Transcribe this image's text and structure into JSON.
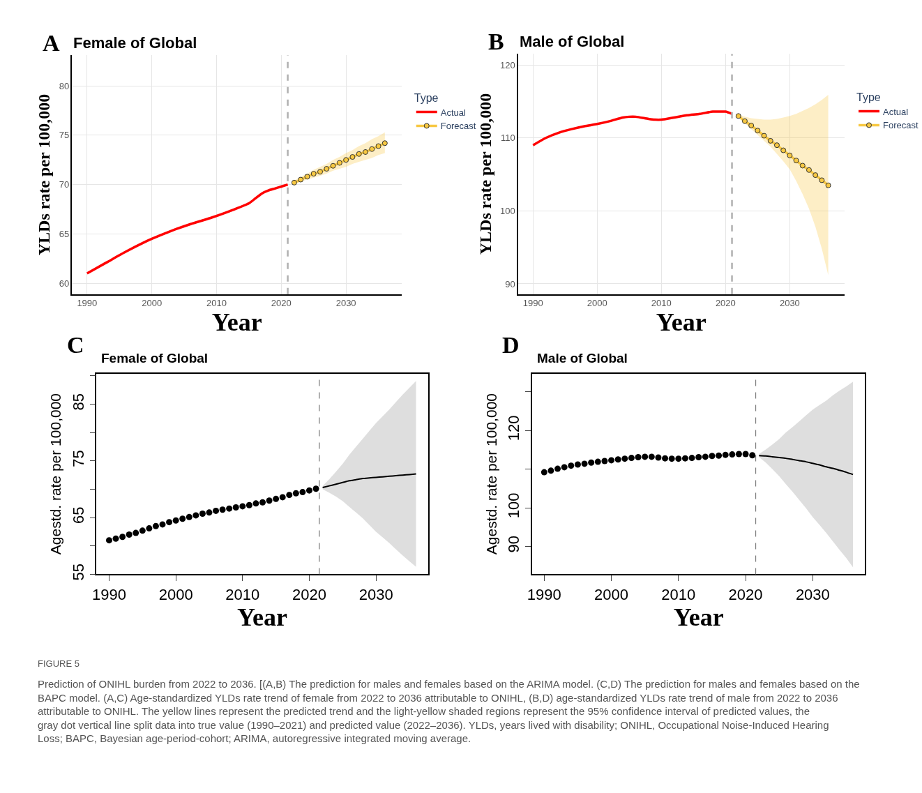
{
  "chart_data": [
    {
      "type": "line",
      "title": "Female of Global",
      "xlabel": "Year",
      "ylabel": "YLDs rate per 100,000",
      "legend_title": "Type",
      "legend": "right",
      "grid": true,
      "annotations": [
        "A"
      ],
      "xlim": [
        1987.7,
        2038.6
      ],
      "xticks": [
        1990,
        2000,
        2010,
        2020,
        2030
      ],
      "ylim": [
        58.9,
        83.1
      ],
      "yticks": [
        60,
        65,
        70,
        75,
        80
      ],
      "ref_lines": [
        {
          "axis": "x",
          "value": 2021,
          "color": "#b0b0b0",
          "line_style": "dashed"
        }
      ],
      "series": [
        {
          "name": "Actual",
          "color": "#ff0000",
          "x": [
            1990,
            1993,
            1996,
            1999,
            2000,
            2003,
            2006,
            2009,
            2012,
            2015,
            2016,
            2017,
            2018,
            2019,
            2020,
            2021
          ],
          "values": [
            61.0,
            62.1,
            63.2,
            64.2,
            64.5,
            65.3,
            66.0,
            66.6,
            67.3,
            68.1,
            68.6,
            69.1,
            69.4,
            69.6,
            69.8,
            70.0
          ]
        },
        {
          "name": "Forecast",
          "marker": "circle",
          "color": "#f7c843",
          "x": [
            2022,
            2023,
            2024,
            2025,
            2026,
            2027,
            2028,
            2029,
            2030,
            2031,
            2032,
            2033,
            2034,
            2035,
            2036
          ],
          "values": [
            70.2,
            70.5,
            70.8,
            71.1,
            71.3,
            71.6,
            71.9,
            72.2,
            72.5,
            72.8,
            73.1,
            73.3,
            73.6,
            73.9,
            74.2
          ],
          "lower": [
            70.0,
            70.3,
            70.5,
            70.7,
            70.9,
            71.1,
            71.4,
            71.6,
            71.8,
            72.1,
            72.3,
            72.5,
            72.7,
            73.0,
            73.2
          ],
          "upper": [
            70.4,
            70.8,
            71.1,
            71.5,
            71.8,
            72.1,
            72.5,
            72.8,
            73.2,
            73.5,
            73.9,
            74.2,
            74.6,
            74.9,
            75.3
          ]
        }
      ]
    },
    {
      "type": "line",
      "title": "Male of Global",
      "xlabel": "Year",
      "ylabel": "YLDs rate per 100,000",
      "legend_title": "Type",
      "legend": "right",
      "grid": true,
      "annotations": [
        "B"
      ],
      "xlim": [
        1987.7,
        2038.5
      ],
      "xticks": [
        1990,
        2000,
        2010,
        2020,
        2030
      ],
      "ylim": [
        88.6,
        121.5
      ],
      "yticks": [
        90,
        100,
        110,
        120
      ],
      "ref_lines": [
        {
          "axis": "x",
          "value": 2021,
          "color": "#b0b0b0",
          "line_style": "dashed"
        }
      ],
      "series": [
        {
          "name": "Actual",
          "color": "#ff0000",
          "x": [
            1990,
            1992,
            1994,
            1996,
            1998,
            2000,
            2002,
            2004,
            2005,
            2006,
            2008,
            2009,
            2010,
            2012,
            2014,
            2016,
            2018,
            2019,
            2020,
            2021
          ],
          "values": [
            109.0,
            110.0,
            110.7,
            111.2,
            111.6,
            111.9,
            112.3,
            112.8,
            112.9,
            112.9,
            112.6,
            112.5,
            112.5,
            112.8,
            113.1,
            113.3,
            113.6,
            113.6,
            113.6,
            113.3
          ]
        },
        {
          "name": "Forecast",
          "marker": "circle",
          "color": "#f7c843",
          "x": [
            2022,
            2023,
            2024,
            2025,
            2026,
            2027,
            2028,
            2029,
            2030,
            2031,
            2032,
            2033,
            2034,
            2035,
            2036
          ],
          "values": [
            113.0,
            112.3,
            111.7,
            111.0,
            110.3,
            109.6,
            109.0,
            108.3,
            107.6,
            106.9,
            106.2,
            105.6,
            104.9,
            104.2,
            103.5
          ],
          "lower": [
            112.8,
            112.0,
            111.2,
            110.4,
            109.6,
            108.8,
            107.8,
            106.8,
            105.7,
            104.1,
            102.3,
            100.3,
            97.8,
            94.8,
            91.2
          ],
          "upper": [
            113.2,
            112.9,
            112.7,
            112.6,
            112.5,
            112.5,
            112.6,
            112.8,
            113.0,
            113.3,
            113.7,
            114.1,
            114.6,
            115.2,
            115.9
          ]
        }
      ]
    },
    {
      "type": "line",
      "title": "Female of Global",
      "xlabel": "Year",
      "ylabel": "Agestd. rate per 100,000",
      "annotations": [
        "C"
      ],
      "xlim": [
        1988.1,
        2037.8
      ],
      "xticks": [
        1990,
        2000,
        2010,
        2020,
        2030
      ],
      "ylim": [
        55,
        90.4
      ],
      "yticks": [
        55,
        {
          "value": 60,
          "label": null
        },
        65,
        {
          "value": 70,
          "label": null
        },
        75,
        {
          "value": 80,
          "label": null
        },
        85,
        {
          "value": 90,
          "label": null
        }
      ],
      "ref_lines": [
        {
          "axis": "x",
          "value": 2021.5,
          "color": "#808080",
          "line_style": "dashed"
        }
      ],
      "series": [
        {
          "type": "scatter",
          "marker": "circle",
          "color": "#000000",
          "x": [
            1990,
            1991,
            1992,
            1993,
            1994,
            1995,
            1996,
            1997,
            1998,
            1999,
            2000,
            2001,
            2002,
            2003,
            2004,
            2005,
            2006,
            2007,
            2008,
            2009,
            2010,
            2011,
            2012,
            2013,
            2014,
            2015,
            2016,
            2017,
            2018,
            2019,
            2020,
            2021
          ],
          "values": [
            61.0,
            61.3,
            61.6,
            62.0,
            62.3,
            62.7,
            63.1,
            63.5,
            63.8,
            64.2,
            64.5,
            64.8,
            65.1,
            65.4,
            65.7,
            65.9,
            66.2,
            66.4,
            66.6,
            66.8,
            67.0,
            67.2,
            67.5,
            67.7,
            68.0,
            68.3,
            68.6,
            69.0,
            69.3,
            69.5,
            69.8,
            70.1
          ]
        },
        {
          "color": "#000000",
          "x": [
            2022,
            2023,
            2024,
            2025,
            2026,
            2027,
            2028,
            2029,
            2030,
            2031,
            2032,
            2033,
            2034,
            2035,
            2036
          ],
          "values": [
            70.3,
            70.6,
            70.9,
            71.2,
            71.5,
            71.7,
            71.9,
            72.0,
            72.1,
            72.2,
            72.3,
            72.4,
            72.5,
            72.6,
            72.7
          ],
          "lower": [
            70.0,
            69.4,
            68.7,
            67.9,
            66.9,
            65.9,
            64.9,
            63.7,
            62.5,
            61.5,
            60.5,
            59.4,
            58.3,
            57.3,
            56.3
          ],
          "upper": [
            70.6,
            71.8,
            73.1,
            74.5,
            76.1,
            77.5,
            78.9,
            80.3,
            81.7,
            82.9,
            84.1,
            85.4,
            86.7,
            87.9,
            89.1
          ]
        }
      ]
    },
    {
      "type": "line",
      "title": "Male of Global",
      "xlabel": "Year",
      "ylabel": "Agestd. rate per 100,000",
      "annotations": [
        "D",
        "FIGURE 5",
        "Prediction of ONIHL burden from 2022 to 2036. [(A,B) The prediction for males and females based on the ARIMA model. (C,D) The prediction for males and females based on the BAPC model. (A,C) Age-standardized YLDs rate trend of female from 2022 to 2036 attributable to ONIHL, (B,D) age-standardized YLDs rate trend of male from 2022 to 2036 attributable to ONIHL. The yellow lines represent the predicted trend and the light-yellow shaded regions represent the 95% confidence interval of predicted values, the gray dot vertical line split data into true value (1990–2021) and predicted value (2022–2036). YLDs, years lived with disability; ONIHL, Occupational Noise-Induced Hearing Loss; BAPC, Bayesian age-period-cohort; ARIMA, autoregressive integrated moving average."
      ],
      "xlim": [
        1988.2,
        2037.8
      ],
      "xticks": [
        1990,
        2000,
        2010,
        2020,
        2030
      ],
      "ylim": [
        82.8,
        134.7
      ],
      "yticks": [
        90,
        100,
        {
          "value": 110,
          "label": null
        },
        120,
        {
          "value": 130,
          "label": null
        }
      ],
      "ref_lines": [
        {
          "axis": "x",
          "value": 2021.5,
          "color": "#808080",
          "line_style": "dashed"
        }
      ],
      "series": [
        {
          "type": "scatter",
          "marker": "circle",
          "color": "#000000",
          "x": [
            1990,
            1991,
            1992,
            1993,
            1994,
            1995,
            1996,
            1997,
            1998,
            1999,
            2000,
            2001,
            2002,
            2003,
            2004,
            2005,
            2006,
            2007,
            2008,
            2009,
            2010,
            2011,
            2012,
            2013,
            2014,
            2015,
            2016,
            2017,
            2018,
            2019,
            2020,
            2021
          ],
          "values": [
            109.2,
            109.6,
            110.1,
            110.5,
            110.9,
            111.2,
            111.4,
            111.7,
            111.9,
            112.1,
            112.3,
            112.5,
            112.7,
            112.9,
            113.1,
            113.2,
            113.2,
            113.0,
            112.8,
            112.7,
            112.7,
            112.8,
            112.9,
            113.1,
            113.2,
            113.4,
            113.5,
            113.7,
            113.8,
            113.9,
            113.9,
            113.6
          ]
        },
        {
          "color": "#000000",
          "x": [
            2022,
            2023,
            2024,
            2025,
            2026,
            2027,
            2028,
            2029,
            2030,
            2031,
            2032,
            2033,
            2034,
            2035,
            2036
          ],
          "values": [
            113.5,
            113.4,
            113.2,
            113.0,
            112.8,
            112.5,
            112.2,
            111.9,
            111.5,
            111.1,
            110.6,
            110.2,
            109.7,
            109.2,
            108.6
          ],
          "lower": [
            113.1,
            111.7,
            110.0,
            108.2,
            106.1,
            104.1,
            102.0,
            99.9,
            97.6,
            95.6,
            93.5,
            91.3,
            89.1,
            87.0,
            84.6
          ],
          "upper": [
            113.9,
            115.1,
            116.4,
            117.8,
            119.5,
            120.9,
            122.4,
            123.9,
            125.4,
            126.6,
            127.7,
            129.1,
            130.3,
            131.4,
            132.6
          ]
        }
      ]
    }
  ]
}
